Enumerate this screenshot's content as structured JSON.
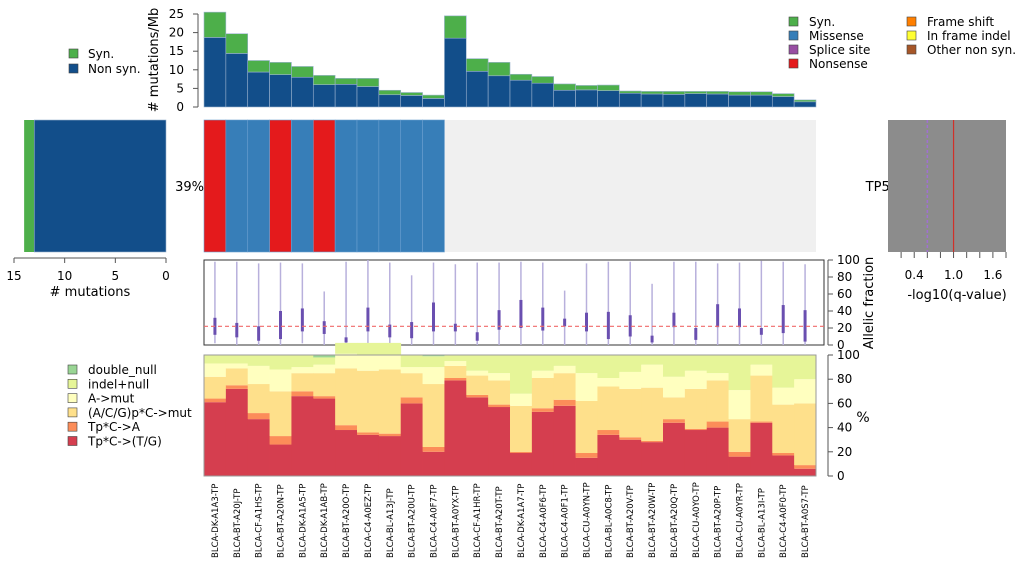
{
  "chart_data": {
    "type": "composite-oncoprint",
    "samples": [
      "BLCA-DK-A1A3-TP",
      "BLCA-BT-A20J-TP",
      "BLCA-CF-A1HS-TP",
      "BLCA-BT-A20N-TP",
      "BLCA-DK-A1A5-TP",
      "BLCA-DK-A1AB-TP",
      "BLCA-BT-A20O-TP",
      "BLCA-C4-A0EZ-TP",
      "BLCA-BL-A13J-TP",
      "BLCA-BT-A20U-TP",
      "BLCA-C4-A0F7-TP",
      "BLCA-BT-A0YX-TP",
      "BLCA-CF-A1HR-TP",
      "BLCA-BT-A20T-TP",
      "BLCA-DK-A1A7-TP",
      "BLCA-C4-A0F6-TP",
      "BLCA-C4-A0F1-TP",
      "BLCA-CU-A0YN-TP",
      "BLCA-BL-A0C8-TP",
      "BLCA-BT-A20V-TP",
      "BLCA-BT-A20W-TP",
      "BLCA-BT-A20Q-TP",
      "BLCA-CU-A0YO-TP",
      "BLCA-BT-A20P-TP",
      "BLCA-CU-A0YR-TP",
      "BLCA-BL-A13I-TP",
      "BLCA-C4-A0F0-TP",
      "BLCA-BT-A0S7-TP"
    ],
    "mutation_rate": {
      "ylabel": "# mutations/Mb",
      "yticks": [
        0,
        5,
        10,
        15,
        20,
        25
      ],
      "ylim": [
        0,
        25
      ],
      "series": [
        {
          "name": "Non syn.",
          "color": "#124E8A",
          "values": [
            18.7,
            14.4,
            9.4,
            8.7,
            8.0,
            6.0,
            6.1,
            5.5,
            3.3,
            3.1,
            2.3,
            18.5,
            9.6,
            8.4,
            7.2,
            6.4,
            4.5,
            4.6,
            4.4,
            3.7,
            3.5,
            3.4,
            3.6,
            3.5,
            3.2,
            3.2,
            2.8,
            1.4
          ]
        },
        {
          "name": "Syn.",
          "color": "#4DAF4A",
          "values": [
            6.8,
            5.3,
            3.1,
            3.3,
            2.9,
            2.5,
            1.6,
            2.2,
            1.2,
            0.8,
            0.9,
            6.0,
            3.4,
            3.6,
            1.6,
            1.8,
            1.7,
            1.2,
            1.5,
            0.6,
            0.7,
            0.8,
            0.6,
            0.7,
            0.9,
            0.9,
            0.8,
            0.5
          ]
        }
      ],
      "legend": [
        {
          "label": "Syn.",
          "color": "#4DAF4A"
        },
        {
          "label": "Non syn.",
          "color": "#124E8A"
        }
      ]
    },
    "mutation_type_legend": [
      {
        "label": "Syn.",
        "color": "#4DAF4A"
      },
      {
        "label": "Missense",
        "color": "#377EB8"
      },
      {
        "label": "Splice site",
        "color": "#984EA3"
      },
      {
        "label": "Nonsense",
        "color": "#E41A1C"
      },
      {
        "label": "Frame shift",
        "color": "#FF7F00"
      },
      {
        "label": "In frame indel",
        "color": "#FFFF33"
      },
      {
        "label": "Other non syn.",
        "color": "#A65628"
      }
    ],
    "gene_matrix": {
      "gene": "TP53",
      "percent_label": "39%",
      "cells": [
        "Nonsense",
        "Missense",
        "Missense",
        "Nonsense",
        "Missense",
        "Nonsense",
        "Missense",
        "Missense",
        "Missense",
        "Missense",
        "Missense",
        null,
        null,
        null,
        null,
        null,
        null,
        null,
        null,
        null,
        null,
        null,
        null,
        null,
        null,
        null,
        null,
        null
      ],
      "colors": {
        "Nonsense": "#E41A1C",
        "Missense": "#377EB8",
        "empty": "#F0F0F0"
      }
    },
    "gene_counts": {
      "xlabel": "# mutations",
      "xticks": [
        15,
        10,
        5,
        0
      ],
      "xlim": [
        15,
        0
      ],
      "syn": 1,
      "non_syn": 13
    },
    "qvalue": {
      "xlabel": "-log10(q-value)",
      "tick_labels": [
        "0.4",
        "1.0",
        "1.6"
      ],
      "minor_ticks": [
        0.2,
        0.4,
        0.6,
        0.8,
        1.0,
        1.2,
        1.4,
        1.6,
        1.8
      ],
      "xlim": [
        0,
        1.8
      ],
      "threshold_dashed": 0.6,
      "gene_value_line": 1.0,
      "bar_value": 1.8,
      "bar_color": "#8C8C8C"
    },
    "allelic_fraction": {
      "ylabel": "Allelic fraction",
      "yticks": [
        0,
        20,
        40,
        60,
        80,
        100
      ],
      "ylim": [
        0,
        100
      ],
      "reference_line": 22,
      "whiskers": [
        [
          2,
          98,
          12,
          32
        ],
        [
          0,
          98,
          9,
          26
        ],
        [
          0,
          96,
          5,
          22
        ],
        [
          0,
          97,
          7,
          40
        ],
        [
          2,
          96,
          16,
          43
        ],
        [
          0,
          63,
          13,
          28
        ],
        [
          0,
          98,
          3,
          9
        ],
        [
          0,
          100,
          16,
          44
        ],
        [
          0,
          97,
          9,
          24
        ],
        [
          0,
          82,
          8,
          27
        ],
        [
          0,
          97,
          16,
          50
        ],
        [
          0,
          95,
          16,
          25
        ],
        [
          0,
          97,
          5,
          15
        ],
        [
          0,
          97,
          18,
          41
        ],
        [
          0,
          98,
          20,
          53
        ],
        [
          0,
          97,
          17,
          44
        ],
        [
          0,
          64,
          22,
          31
        ],
        [
          0,
          96,
          16,
          38
        ],
        [
          0,
          98,
          7,
          39
        ],
        [
          0,
          98,
          10,
          35
        ],
        [
          0,
          72,
          3,
          11
        ],
        [
          0,
          98,
          21,
          38
        ],
        [
          0,
          98,
          6,
          20
        ],
        [
          0,
          96,
          21,
          48
        ],
        [
          0,
          97,
          21,
          43
        ],
        [
          0,
          99,
          12,
          20
        ],
        [
          0,
          98,
          14,
          47
        ],
        [
          0,
          95,
          4,
          41
        ]
      ]
    },
    "spectrum": {
      "ylabel": "%",
      "yticks": [
        0,
        20,
        40,
        60,
        80,
        100
      ],
      "ylim": [
        0,
        100
      ],
      "series": [
        {
          "name": "Tp*C->(T/G)",
          "color": "#D53E4F",
          "values": [
            61,
            72,
            47,
            26,
            66,
            64,
            38,
            34,
            33,
            60,
            20,
            79,
            65,
            57,
            19,
            53,
            58,
            15,
            34,
            30,
            28,
            44,
            38,
            40,
            16,
            44,
            17,
            6
          ]
        },
        {
          "name": "Tp*C->A",
          "color": "#FC8D59",
          "values": [
            3,
            3,
            5,
            7,
            4,
            2,
            4,
            2,
            2,
            5,
            4,
            2,
            2,
            2,
            1,
            3,
            5,
            4,
            4,
            2,
            1,
            3,
            1,
            5,
            4,
            1,
            2,
            3
          ]
        },
        {
          "name": "(A/C/G)p*C->mut",
          "color": "#FEE08B",
          "values": [
            18,
            14,
            24,
            37,
            15,
            19,
            47,
            51,
            53,
            20,
            52,
            10,
            16,
            20,
            38,
            25,
            22,
            43,
            36,
            40,
            44,
            18,
            33,
            34,
            27,
            38,
            40,
            51
          ]
        },
        {
          "name": "A->mut",
          "color": "#FFFFBF",
          "values": [
            11,
            4,
            15,
            18,
            5,
            7,
            12,
            13,
            12,
            5,
            14,
            4,
            4,
            6,
            10,
            6,
            6,
            23,
            7,
            14,
            19,
            17,
            15,
            6,
            24,
            9,
            14,
            20
          ]
        },
        {
          "name": "indel+null",
          "color": "#E6F598",
          "values": [
            7,
            7,
            9,
            12,
            10,
            6,
            9,
            10,
            10,
            10,
            9,
            5,
            13,
            15,
            32,
            13,
            9,
            15,
            19,
            14,
            8,
            18,
            13,
            15,
            29,
            8,
            27,
            20
          ]
        },
        {
          "name": "double_null",
          "color": "#99D594",
          "values": [
            0,
            0,
            0,
            0,
            0,
            2,
            0,
            0,
            0,
            0,
            1,
            0,
            0,
            0,
            0,
            0,
            0,
            0,
            0,
            0,
            0,
            0,
            0,
            0,
            0,
            0,
            0,
            0
          ]
        }
      ],
      "legend": [
        {
          "label": "double_null",
          "color": "#99D594"
        },
        {
          "label": "indel+null",
          "color": "#E6F598"
        },
        {
          "label": "A->mut",
          "color": "#FFFFBF"
        },
        {
          "label": "(A/C/G)p*C->mut",
          "color": "#FEE08B"
        },
        {
          "label": "Tp*C->A",
          "color": "#FC8D59"
        },
        {
          "label": "Tp*C->(T/G)",
          "color": "#D53E4F"
        }
      ]
    }
  }
}
